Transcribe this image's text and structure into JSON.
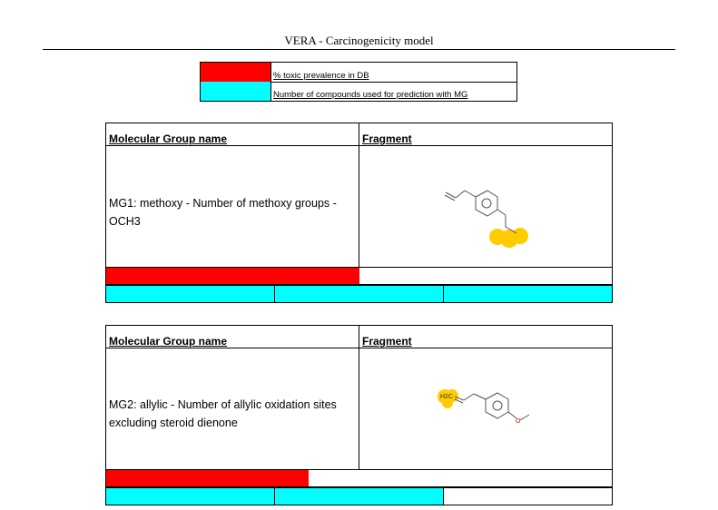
{
  "header": {
    "title": "VERA - Carcinogenicity model"
  },
  "legend": {
    "items": [
      {
        "color": "#ff0000",
        "label": "% toxic prevalence in DB"
      },
      {
        "color": "#00ffff",
        "label": "Number of compounds used for prediction with MG"
      }
    ]
  },
  "columns": {
    "name": "Molecular Group name",
    "fragment": "Fragment"
  },
  "groups": [
    {
      "description": "MG1: methoxy - Number of methoxy groups - OCH3",
      "fragment": {
        "highlight": "methoxy",
        "labels": []
      },
      "toxic_prevalence": 0.5,
      "compound_cells_filled": 3,
      "compound_cells_total": 3
    },
    {
      "description": "MG2: allylic - Number of allylic oxidation sites excluding steroid dienone",
      "fragment": {
        "highlight": "allylic",
        "labels": [
          "H2C",
          "O"
        ]
      },
      "toxic_prevalence": 0.4,
      "compound_cells_filled": 2,
      "compound_cells_total": 3
    }
  ]
}
